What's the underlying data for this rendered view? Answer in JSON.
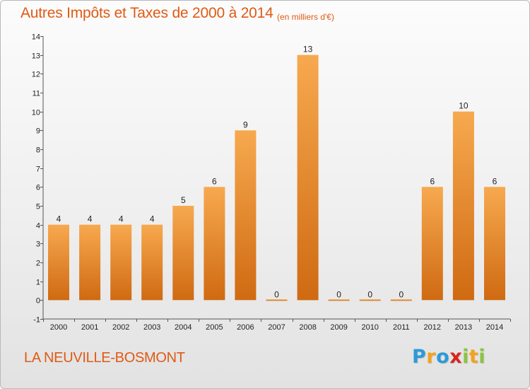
{
  "header": {
    "title": "Autres Impôts et Taxes de 2000 à 2014",
    "subtitle": "(en milliers d'€)"
  },
  "footer": {
    "commune": "LA NEUVILLE-BOSMONT",
    "logo_letters": [
      "P",
      "r",
      "o",
      "x",
      "i",
      "t",
      "i"
    ],
    "logo_colors": [
      "#2d9ad8",
      "#f3a21b",
      "#2d9ad8",
      "#d6261f",
      "#8cc43f",
      "#f3a21b",
      "#8cc43f"
    ]
  },
  "colors": {
    "bar_top": "#f7a94f",
    "bar_bottom": "#cf6a12",
    "text_accent": "#e05a14"
  },
  "chart_data": {
    "type": "bar",
    "categories": [
      "2000",
      "2001",
      "2002",
      "2003",
      "2004",
      "2005",
      "2006",
      "2007",
      "2008",
      "2009",
      "2010",
      "2011",
      "2012",
      "2013",
      "2014"
    ],
    "values": [
      4,
      4,
      4,
      4,
      5,
      6,
      9,
      0,
      13,
      0,
      0,
      0,
      6,
      10,
      6
    ],
    "data_labels": [
      "4",
      "4",
      "4",
      "4",
      "5",
      "6",
      "9",
      "0",
      "13",
      "0",
      "0",
      "0",
      "6",
      "10",
      "6"
    ],
    "ylim": [
      -1,
      14
    ],
    "yticks": [
      -1,
      0,
      1,
      2,
      3,
      4,
      5,
      6,
      7,
      8,
      9,
      10,
      11,
      12,
      13,
      14
    ],
    "ytick_labels": [
      "-1",
      "0",
      "1",
      "2",
      "3",
      "4",
      "5",
      "6",
      "7",
      "8",
      "9",
      "10",
      "11",
      "12",
      "13",
      "14"
    ],
    "grid": false,
    "xlabel": "",
    "ylabel": ""
  }
}
